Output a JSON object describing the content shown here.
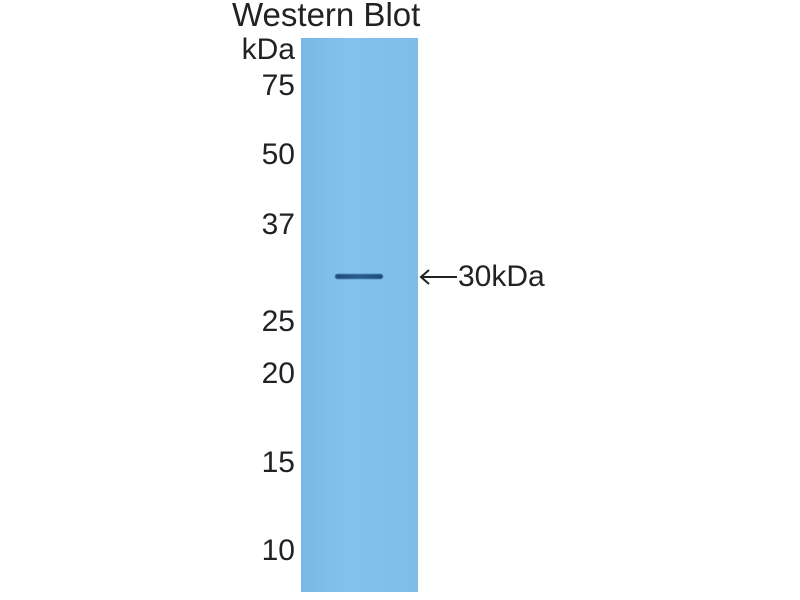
{
  "title": "Western Blot",
  "unit_label": "kDa",
  "markers": [
    "75",
    "50",
    "37",
    "25",
    "20",
    "15",
    "10"
  ],
  "band_label": "30kDa",
  "colors": {
    "lane": "#7dbde8",
    "band": "#1d4a7a"
  },
  "icons": {
    "band_pointer": "left-arrow-icon"
  }
}
